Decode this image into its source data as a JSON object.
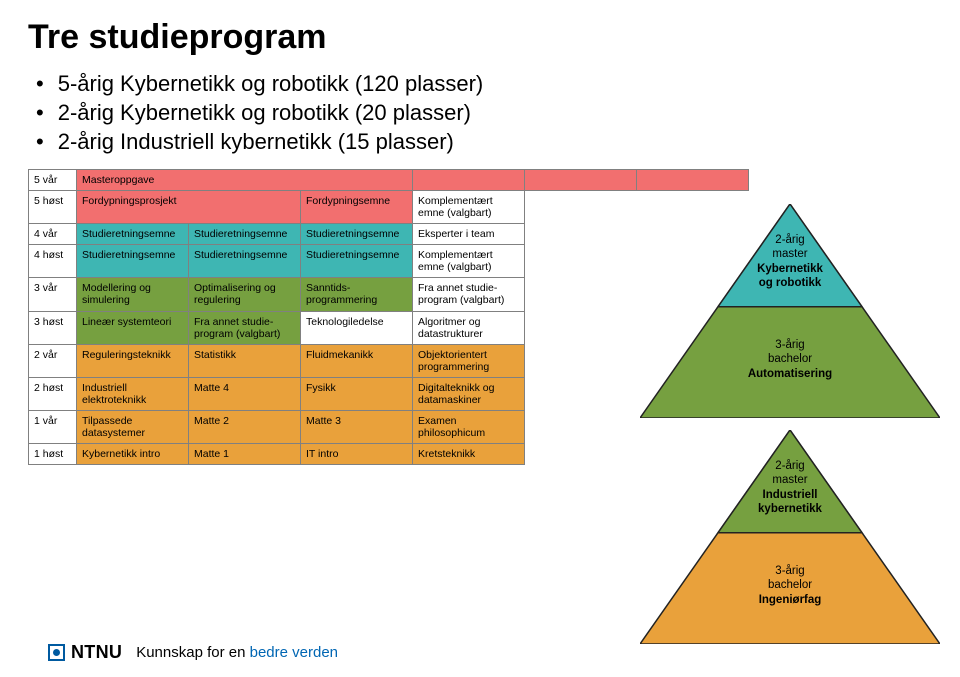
{
  "title": "Tre studieprogram",
  "bullets": [
    "5-årig Kybernetikk og robotikk (120 plasser)",
    "2-årig Kybernetikk og robotikk (20 plasser)",
    "2-årig Industriell kybernetikk (15 plasser)"
  ],
  "table": {
    "colors": {
      "red": "#f26f6f",
      "teal": "#3eb6b3",
      "green": "#76a040",
      "orange": "#e9a13b",
      "white": "#ffffff",
      "border": "#808080"
    },
    "font_size": 10.5,
    "rows": [
      {
        "sem": "5 vår",
        "bg": "red",
        "dashed_above": false,
        "cells": [
          "Masteroppgave",
          "",
          "",
          ""
        ],
        "span": [
          3,
          0,
          0,
          0
        ],
        "trailing": false
      },
      {
        "sem": "5 høst",
        "bg": "red",
        "dashed_above": false,
        "cells": [
          "Fordypningsprosjekt",
          "Fordypningsemne",
          "Komplementært emne (valgbart)"
        ],
        "span": [
          2,
          0,
          1
        ],
        "trailing": false
      },
      {
        "sem": "4 vår",
        "bg": "teal",
        "dashed_above": false,
        "cells": [
          "Studieretningsemne",
          "Studieretningsemne",
          "Studieretningsemne",
          "Eksperter i team"
        ]
      },
      {
        "sem": "4 høst",
        "bg": "teal",
        "dashed_above": true,
        "cells": [
          "Studieretningsemne",
          "Studieretningsemne",
          "Studieretningsemne",
          "Komplementært emne (valgbart)"
        ]
      },
      {
        "sem": "3 vår",
        "bg": "green",
        "dashed_above": true,
        "cells": [
          "Modellering og simulering",
          "Optimalisering og regulering",
          "Sanntids-programmering",
          "Fra annet studie-program (valgbart)"
        ]
      },
      {
        "sem": "3 høst",
        "bg": "green",
        "dashed_above": false,
        "cells": [
          "Lineær systemteori",
          "Fra annet studie-program (valgbart)",
          "Teknologiledelse",
          "Algoritmer og datastrukturer"
        ]
      },
      {
        "sem": "2 vår",
        "bg": "orange",
        "dashed_above": true,
        "cells": [
          "Reguleringsteknikk",
          "Statistikk",
          "Fluidmekanikk",
          "Objektorientert programmering"
        ]
      },
      {
        "sem": "2 høst",
        "bg": "orange",
        "dashed_above": false,
        "cells": [
          "Industriell elektroteknikk",
          "Matte 4",
          "Fysikk",
          "Digitalteknikk og datamaskiner"
        ]
      },
      {
        "sem": "1 vår",
        "bg": "orange",
        "dashed_above": false,
        "cells": [
          "Tilpassede datasystemer",
          "Matte 2",
          "Matte 3",
          "Examen philosophicum"
        ]
      },
      {
        "sem": "1 høst",
        "bg": "orange",
        "dashed_above": false,
        "cells": [
          "Kybernetikk intro",
          "Matte 1",
          "IT intro",
          "Kretsteknikk"
        ]
      }
    ]
  },
  "pyramid1": {
    "border_color": "#222222",
    "layers": [
      {
        "color": "#3eb6b3",
        "label_lines": [
          "2-årig",
          "master",
          "Kybernetikk",
          "og robotikk"
        ],
        "bold_from": 2
      },
      {
        "color": "#76a040",
        "label_lines": [
          "3-årig",
          "bachelor",
          "Automatisering"
        ],
        "bold_from": 2
      }
    ]
  },
  "pyramid2": {
    "border_color": "#222222",
    "layers": [
      {
        "color": "#76a040",
        "label_lines": [
          "2-årig",
          "master",
          "Industriell",
          "kybernetikk"
        ],
        "bold_from": 2
      },
      {
        "color": "#e9a13b",
        "label_lines": [
          "3-årig",
          "bachelor",
          "Ingeniørfag"
        ],
        "bold_from": 2
      }
    ]
  },
  "footer": {
    "brand": "NTNU",
    "brand_color": "#005aa0",
    "tagline_black": "Kunnskap for en ",
    "tagline_blue": "bedre verden"
  }
}
